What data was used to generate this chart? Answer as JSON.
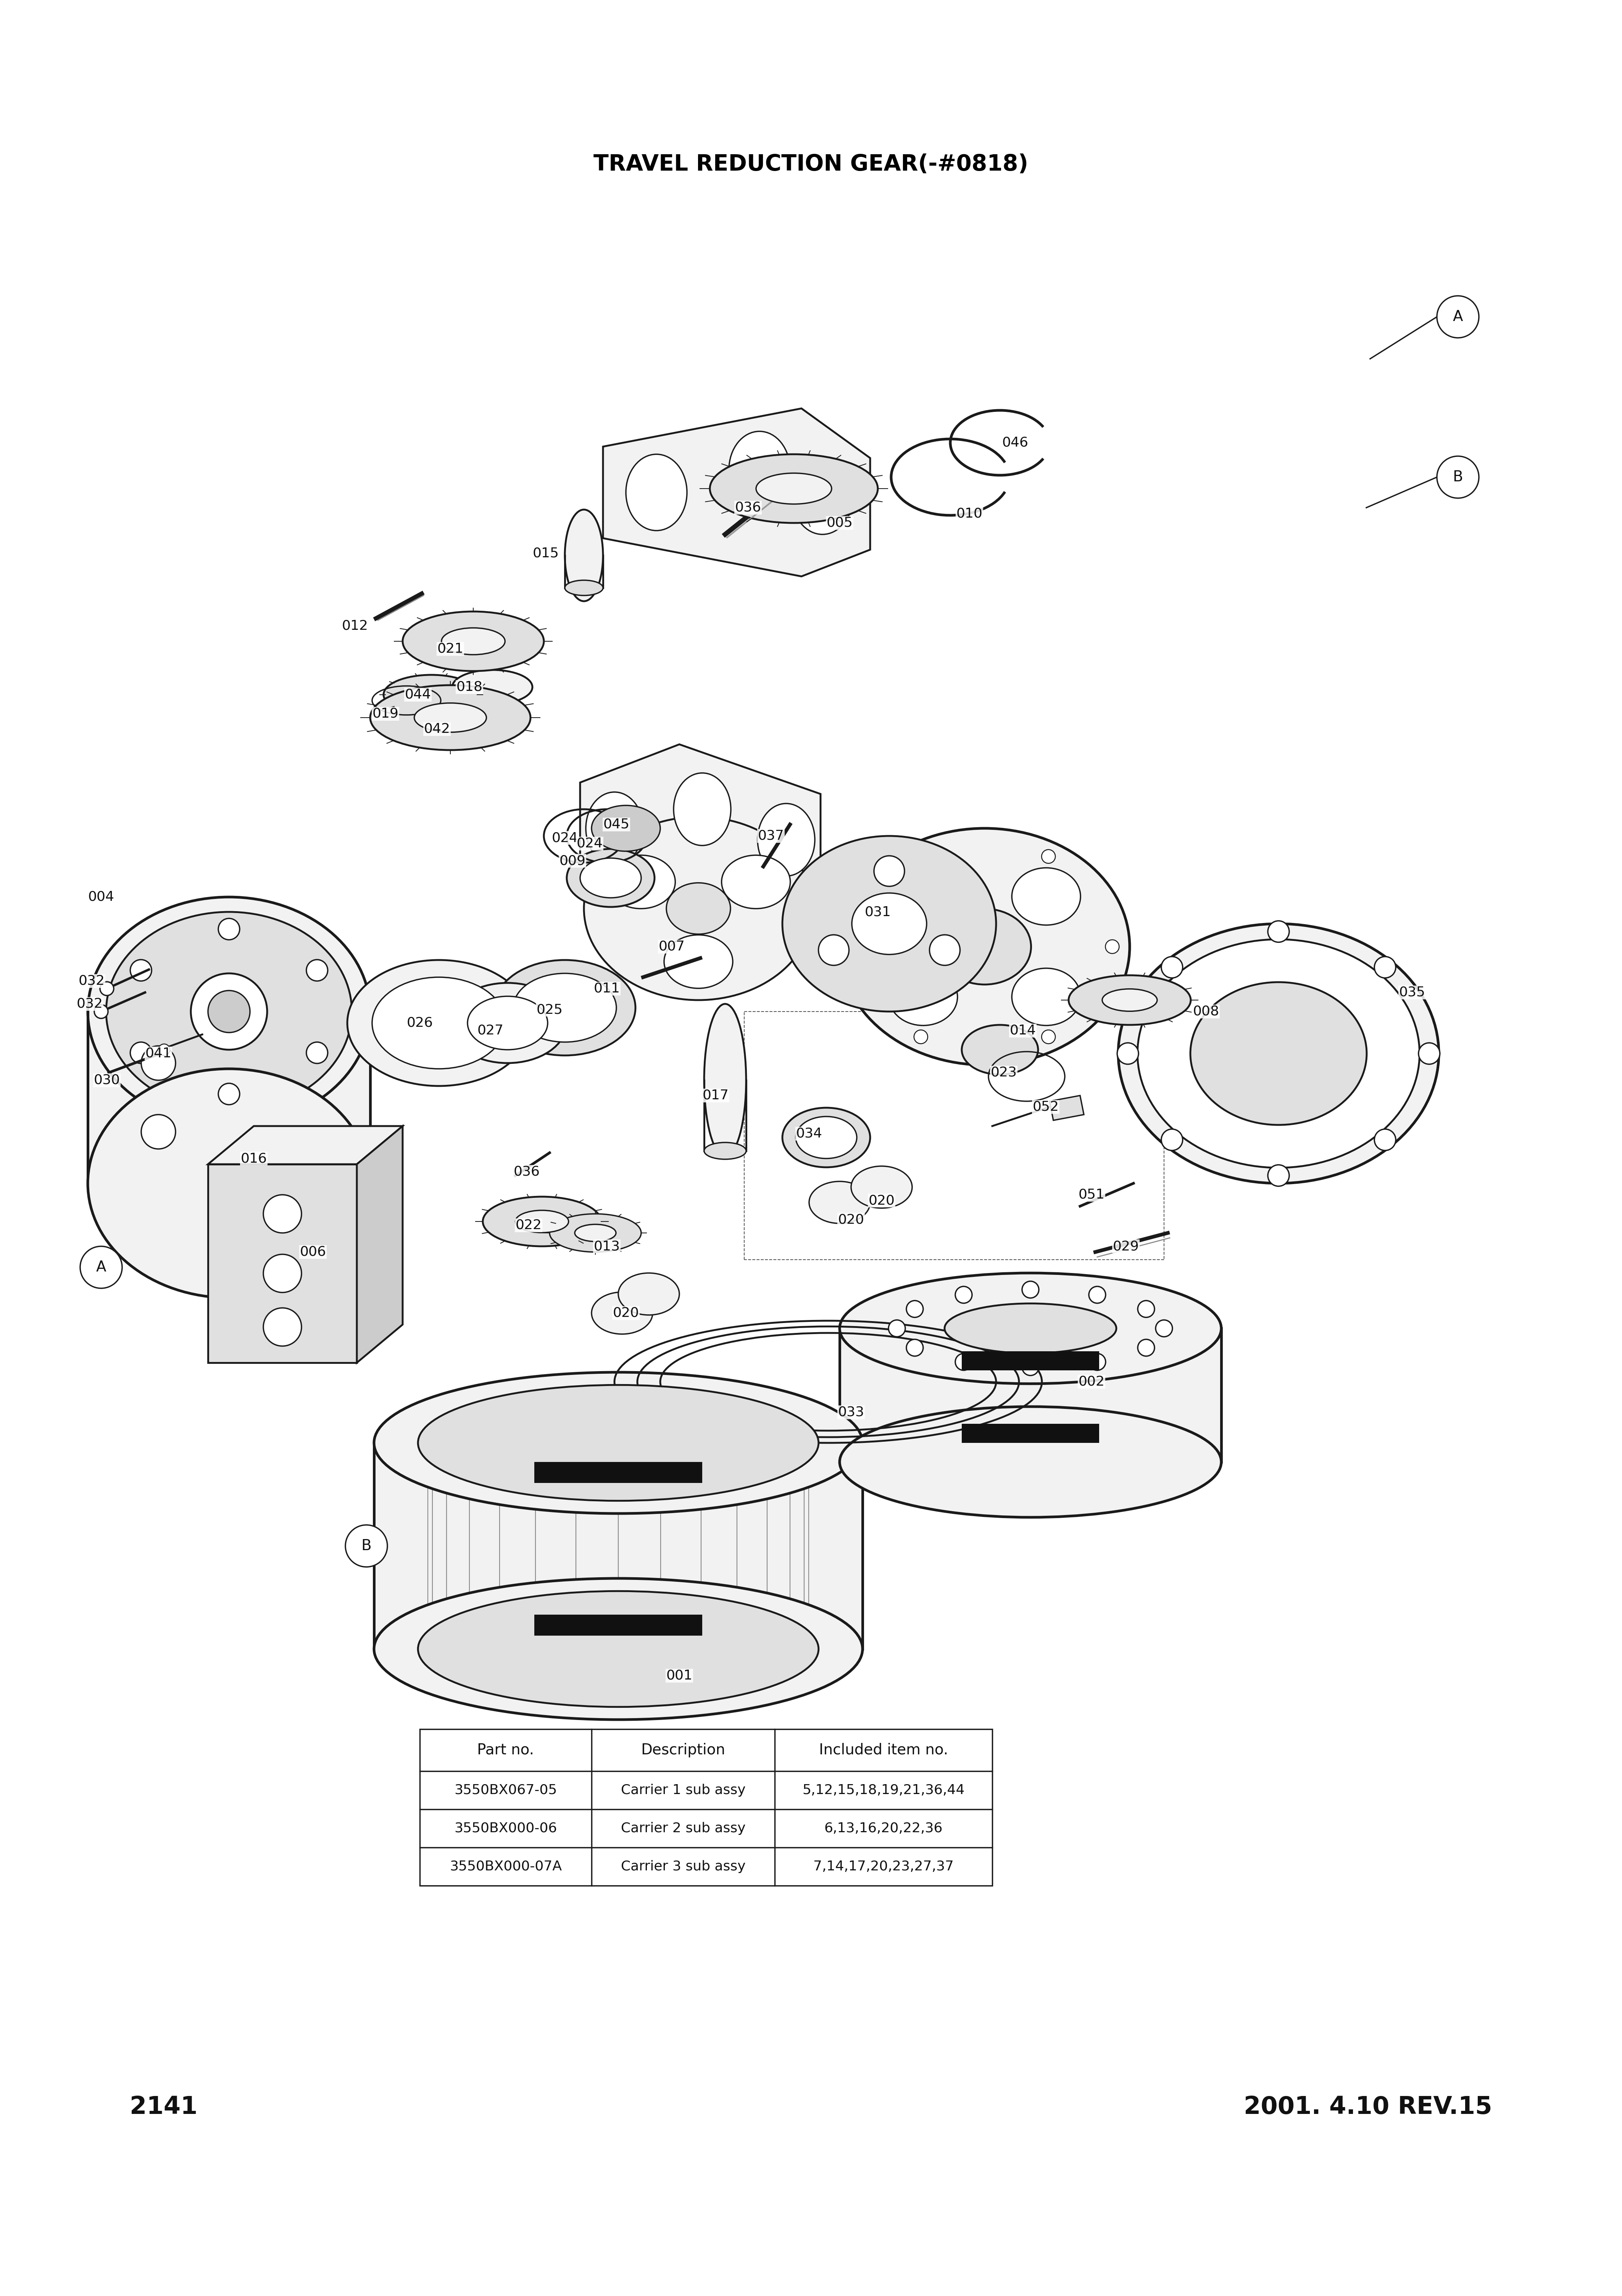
{
  "title": "TRAVEL REDUCTION GEAR(-#0818)",
  "title_fontsize": 42,
  "background_color": "#ffffff",
  "page_number": "2141",
  "page_date": "2001. 4.10 REV.15",
  "table": {
    "col_headers": [
      "Part no.",
      "Description",
      "Included item no."
    ],
    "rows": [
      [
        "3550BX067-05",
        "Carrier 1 sub assy",
        "5,12,15,18,19,21,36,44"
      ],
      [
        "3550BX000-06",
        "Carrier 2 sub assy",
        "6,13,16,20,22,36"
      ],
      [
        "3550BX000-07A",
        "Carrier 3 sub assy",
        "7,14,17,20,23,27,37"
      ]
    ]
  }
}
